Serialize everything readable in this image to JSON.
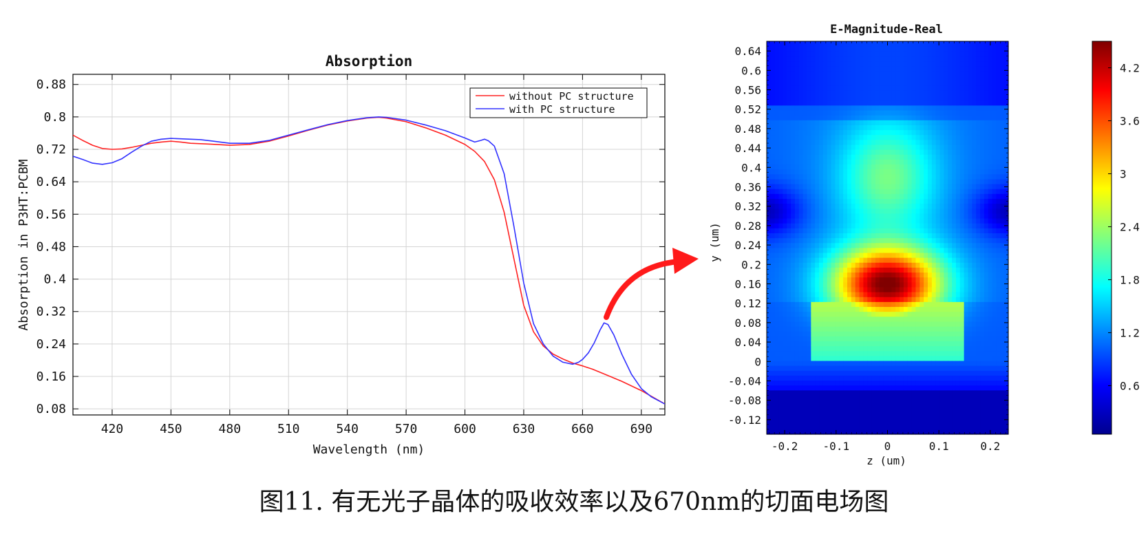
{
  "chart_data": [
    {
      "type": "line",
      "title": "Absorption",
      "xlabel": "Wavelength (nm)",
      "ylabel": "Absorption in P3HT:PCBM",
      "xlim": [
        400,
        702
      ],
      "ylim": [
        0.065,
        0.905
      ],
      "xticks": [
        420,
        450,
        480,
        510,
        540,
        570,
        600,
        630,
        660,
        690
      ],
      "yticks": [
        0.08,
        0.16,
        0.24,
        0.32,
        0.4,
        0.48,
        0.56,
        0.64,
        0.72,
        0.8,
        0.88
      ],
      "grid": true,
      "legend_position": "top-right",
      "series": [
        {
          "name": "without PC structure",
          "color": "#ff2020",
          "x": [
            400,
            405,
            410,
            415,
            420,
            425,
            430,
            435,
            440,
            445,
            450,
            455,
            460,
            470,
            480,
            490,
            500,
            510,
            520,
            530,
            540,
            550,
            556,
            560,
            570,
            580,
            590,
            600,
            605,
            610,
            615,
            620,
            625,
            630,
            635,
            640,
            645,
            650,
            655,
            660,
            665,
            670,
            680,
            690,
            702
          ],
          "y": [
            0.755,
            0.742,
            0.73,
            0.722,
            0.72,
            0.721,
            0.725,
            0.73,
            0.735,
            0.738,
            0.74,
            0.738,
            0.735,
            0.733,
            0.73,
            0.732,
            0.74,
            0.753,
            0.767,
            0.78,
            0.79,
            0.797,
            0.799,
            0.797,
            0.788,
            0.773,
            0.755,
            0.732,
            0.715,
            0.69,
            0.645,
            0.565,
            0.45,
            0.335,
            0.27,
            0.235,
            0.215,
            0.203,
            0.193,
            0.186,
            0.178,
            0.168,
            0.148,
            0.125,
            0.092
          ]
        },
        {
          "name": "with PC structure",
          "color": "#3030ff",
          "x": [
            400,
            405,
            410,
            415,
            420,
            425,
            430,
            435,
            440,
            445,
            450,
            455,
            460,
            465,
            470,
            480,
            490,
            500,
            510,
            520,
            530,
            540,
            550,
            556,
            560,
            570,
            580,
            590,
            600,
            603,
            605,
            608,
            610,
            612,
            615,
            620,
            625,
            630,
            635,
            640,
            645,
            650,
            655,
            658,
            660,
            663,
            666,
            669,
            671,
            673,
            676,
            680,
            685,
            690,
            695,
            702
          ],
          "y": [
            0.703,
            0.695,
            0.686,
            0.683,
            0.687,
            0.697,
            0.713,
            0.728,
            0.74,
            0.745,
            0.747,
            0.746,
            0.745,
            0.744,
            0.741,
            0.735,
            0.735,
            0.742,
            0.755,
            0.768,
            0.781,
            0.791,
            0.798,
            0.8,
            0.799,
            0.792,
            0.78,
            0.766,
            0.748,
            0.742,
            0.738,
            0.742,
            0.745,
            0.741,
            0.728,
            0.66,
            0.53,
            0.39,
            0.29,
            0.24,
            0.21,
            0.195,
            0.19,
            0.195,
            0.202,
            0.218,
            0.243,
            0.275,
            0.292,
            0.288,
            0.262,
            0.215,
            0.165,
            0.13,
            0.11,
            0.092
          ]
        }
      ]
    },
    {
      "type": "heatmap",
      "title": "E-Magnitude-Real",
      "xlabel": "z (um)",
      "ylabel": "y (um)",
      "xlim": [
        -0.235,
        0.235
      ],
      "ylim": [
        -0.15,
        0.66
      ],
      "xticks": [
        -0.2,
        -0.1,
        0,
        0.1,
        0.2
      ],
      "xtick_labels": [
        "-0.2",
        "-0.1",
        "0",
        "0.1",
        "0.2"
      ],
      "yticks": [
        -0.12,
        -0.08,
        -0.04,
        0,
        0.04,
        0.08,
        0.12,
        0.16,
        0.2,
        0.24,
        0.28,
        0.32,
        0.36,
        0.4,
        0.44,
        0.48,
        0.52,
        0.56,
        0.6,
        0.64
      ],
      "colorbar": {
        "colormap": "jet",
        "range": [
          0.05,
          4.5
        ],
        "ticks": [
          0.6,
          1.2,
          1.8,
          2.4,
          3,
          3.6,
          4.2
        ]
      },
      "features": {
        "hotspot_center": [
          0,
          0.16
        ],
        "hotspot_value": 4.4,
        "structure_top_y": 0.53,
        "grating_top_y": 0.12,
        "grating_halfwidth_z": 0.15
      }
    }
  ],
  "caption": "图11. 有无光子晶体的吸收效率以及670nm的切面电场图"
}
